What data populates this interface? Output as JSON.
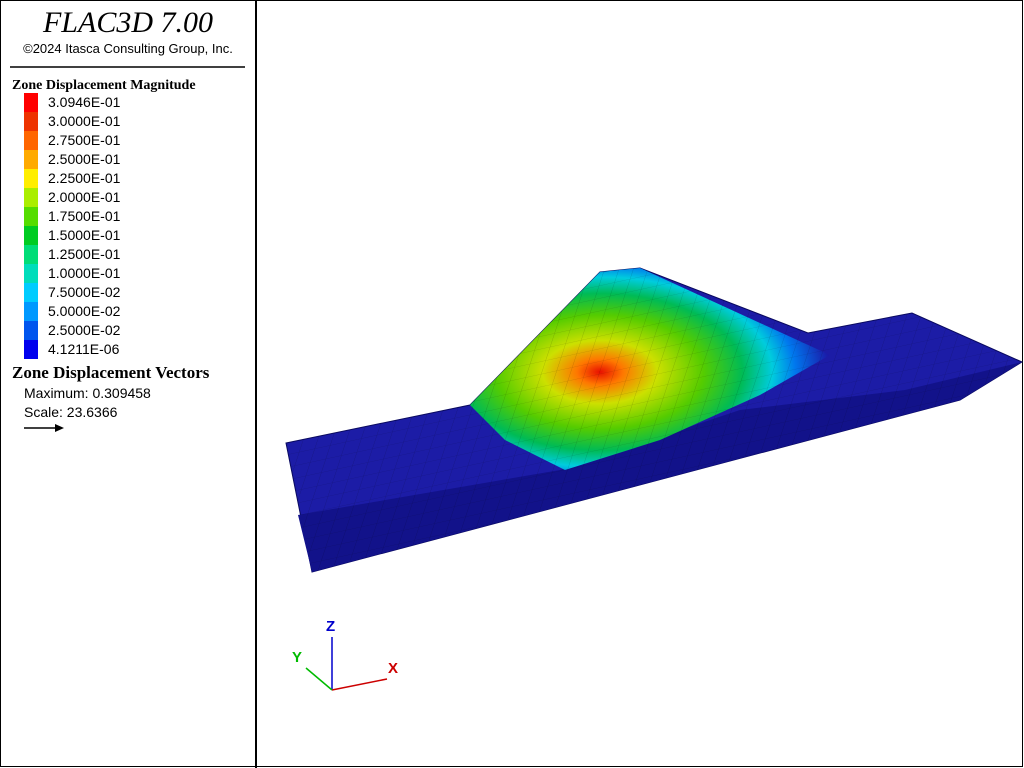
{
  "header": {
    "title": "FLAC3D 7.00",
    "copyright": "©2024 Itasca Consulting Group, Inc."
  },
  "legend": {
    "title": "Zone Displacement Magnitude",
    "items": [
      {
        "label": "3.0946E-01",
        "color": "#ff0000"
      },
      {
        "label": "3.0000E-01",
        "color": "#ee3300"
      },
      {
        "label": "2.7500E-01",
        "color": "#ff6600"
      },
      {
        "label": "2.5000E-01",
        "color": "#ffaa00"
      },
      {
        "label": "2.2500E-01",
        "color": "#ffee00"
      },
      {
        "label": "2.0000E-01",
        "color": "#aaee00"
      },
      {
        "label": "1.7500E-01",
        "color": "#55dd00"
      },
      {
        "label": "1.5000E-01",
        "color": "#00cc22"
      },
      {
        "label": "1.2500E-01",
        "color": "#00dd77"
      },
      {
        "label": "1.0000E-01",
        "color": "#00ddbb"
      },
      {
        "label": "7.5000E-02",
        "color": "#00ccff"
      },
      {
        "label": "5.0000E-02",
        "color": "#0099ff"
      },
      {
        "label": "2.5000E-02",
        "color": "#0055ee"
      },
      {
        "label": "4.1211E-06",
        "color": "#0000ee"
      }
    ]
  },
  "vectors": {
    "title": "Zone Displacement Vectors",
    "maximum": "Maximum: 0.309458",
    "scale": "Scale: 23.6366"
  },
  "axes": {
    "x": "X",
    "y": "Y",
    "z": "Z"
  }
}
